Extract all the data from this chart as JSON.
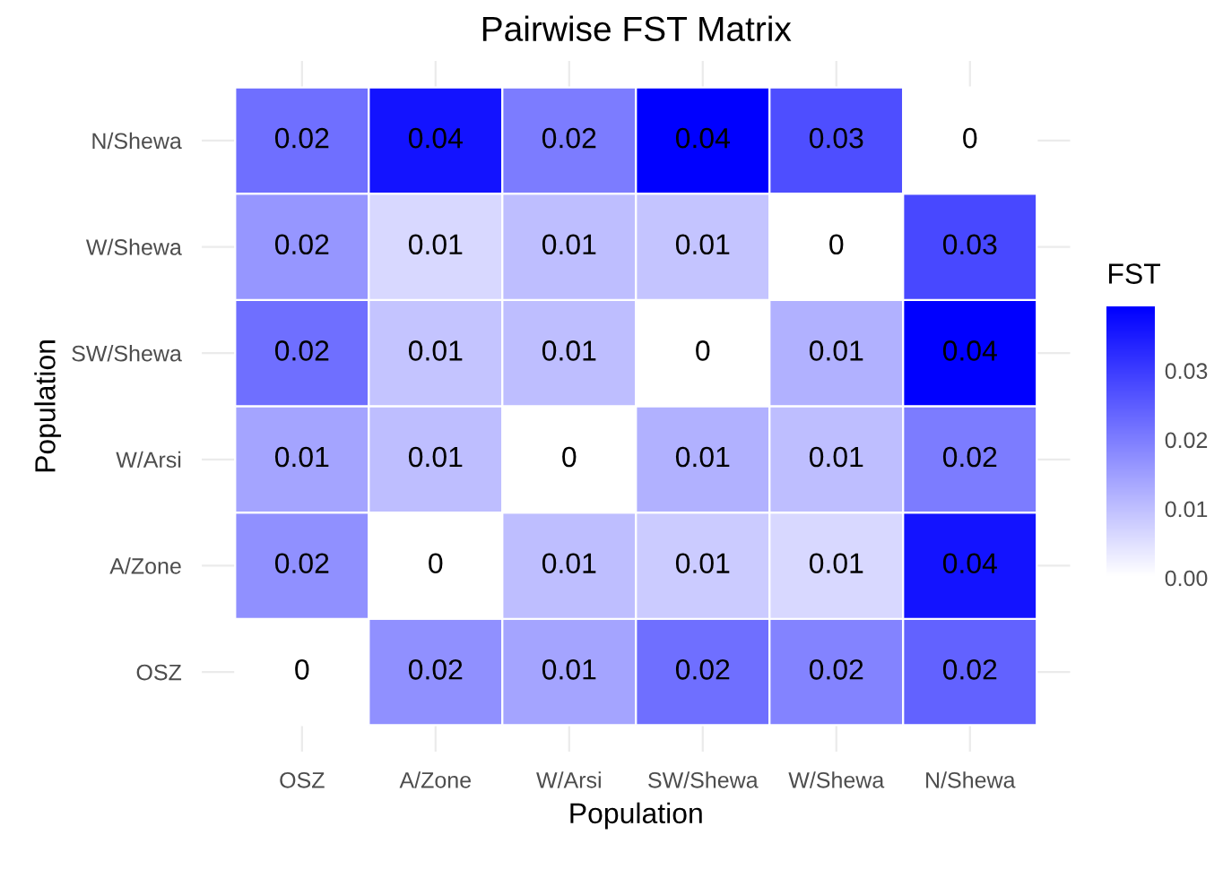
{
  "chart_data": {
    "type": "heatmap",
    "title": "Pairwise FST Matrix",
    "xlabel": "Population",
    "ylabel": "Population",
    "clabel": "FST",
    "categories": [
      "OSZ",
      "A/Zone",
      "W/Arsi",
      "SW/Shewa",
      "W/Shewa",
      "N/Shewa"
    ],
    "y_categories": [
      "N/Shewa",
      "W/Shewa",
      "SW/Shewa",
      "W/Arsi",
      "A/Zone",
      "OSZ"
    ],
    "cells": [
      [
        0.022,
        0.036,
        0.02,
        0.039,
        0.027,
        0
      ],
      [
        0.016,
        0.006,
        0.01,
        0.009,
        0,
        0.028
      ],
      [
        0.022,
        0.009,
        0.01,
        0,
        0.012,
        0.039
      ],
      [
        0.014,
        0.01,
        0,
        0.012,
        0.01,
        0.02
      ],
      [
        0.017,
        0,
        0.01,
        0.008,
        0.006,
        0.036
      ],
      [
        0,
        0.017,
        0.014,
        0.022,
        0.019,
        0.024
      ]
    ],
    "cell_labels": [
      [
        "0.02",
        "0.04",
        "0.02",
        "0.04",
        "0.03",
        "0"
      ],
      [
        "0.02",
        "0.01",
        "0.01",
        "0.01",
        "0",
        "0.03"
      ],
      [
        "0.02",
        "0.01",
        "0.01",
        "0",
        "0.01",
        "0.04"
      ],
      [
        "0.01",
        "0.01",
        "0",
        "0.01",
        "0.01",
        "0.02"
      ],
      [
        "0.02",
        "0",
        "0.01",
        "0.01",
        "0.01",
        "0.04"
      ],
      [
        "0",
        "0.02",
        "0.01",
        "0.02",
        "0.02",
        "0.02"
      ]
    ],
    "clim": [
      0,
      0.039
    ],
    "cticks": [
      {
        "value": 0,
        "label": "0.00"
      },
      {
        "value": 0.01,
        "label": "0.01"
      },
      {
        "value": 0.02,
        "label": "0.02"
      },
      {
        "value": 0.03,
        "label": "0.03"
      }
    ],
    "grid": true
  }
}
